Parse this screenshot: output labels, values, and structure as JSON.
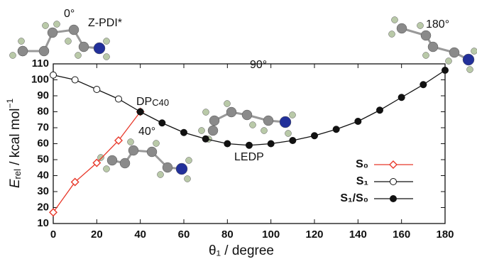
{
  "chart_data": {
    "type": "line",
    "x_label": "θ₁ / degree",
    "y_label": [
      "E",
      "rel",
      " / kcal mol",
      "−1"
    ],
    "x": [
      0,
      10,
      20,
      30,
      40,
      50,
      60,
      70,
      80,
      90,
      100,
      110,
      120,
      130,
      140,
      150,
      160,
      170,
      180
    ],
    "series": [
      {
        "name": "S₀",
        "color": "#e8382a",
        "marker": "diamond-open",
        "values": [
          17,
          36,
          48,
          62,
          80,
          null,
          null,
          null,
          null,
          null,
          null,
          null,
          null,
          null,
          null,
          null,
          null,
          null,
          null
        ]
      },
      {
        "name": "S₁",
        "color": "#111111",
        "marker": "circle-open",
        "values": [
          103,
          100,
          94,
          88,
          80,
          null,
          null,
          null,
          null,
          null,
          null,
          null,
          null,
          null,
          null,
          null,
          null,
          null,
          null
        ]
      },
      {
        "name": "S₁/S₀",
        "color": "#111111",
        "marker": "circle-filled",
        "values": [
          null,
          null,
          null,
          null,
          80,
          73,
          67,
          63,
          60,
          59,
          60,
          62,
          65,
          69,
          74,
          81,
          89,
          97,
          106
        ]
      }
    ],
    "xlim": [
      0,
      180
    ],
    "xticks": [
      0,
      20,
      40,
      60,
      80,
      100,
      120,
      140,
      160,
      180
    ],
    "ylim": [
      10,
      110
    ],
    "yticks": [
      10,
      20,
      30,
      40,
      50,
      60,
      70,
      80,
      90,
      100,
      110
    ],
    "legend": "lower-right",
    "annotations": {
      "z_pdi": "Z-PDI*",
      "angle_0": "0°",
      "angle_180": "180°",
      "angle_90": "90°",
      "angle_40": "40°",
      "dp": [
        "DP",
        "C40"
      ],
      "ledp": "LEDP"
    }
  }
}
